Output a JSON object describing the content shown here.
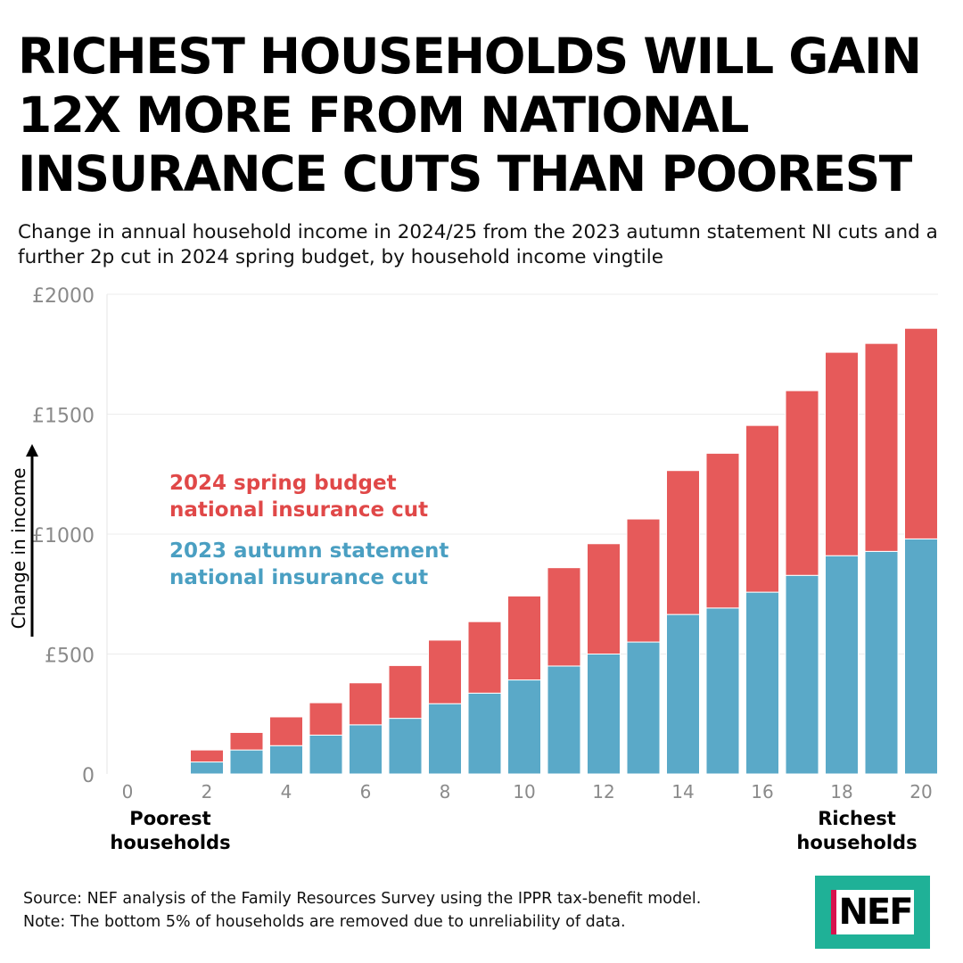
{
  "headline": "RICHEST HOUSEHOLDS WILL GAIN 12X MORE FROM NATIONAL INSURANCE CUTS THAN POOREST",
  "subtitle": "Change in annual household income in 2024/25 from the 2023 autumn statement NI cuts and a further 2p cut in 2024 spring budget, by household income vingtile",
  "footer": {
    "source": "Source: NEF analysis of the Family Resources Survey using the IPPR tax-benefit model.",
    "note": "Note: The bottom 5% of households are removed due to unreliability of data."
  },
  "logo": {
    "text": "NEF",
    "bg_color": "#1fb197",
    "accent_color": "#d8124e"
  },
  "chart_data": {
    "type": "bar",
    "stacked": true,
    "ylabel": "Change in income",
    "xlim": [
      0,
      20
    ],
    "ylim": [
      0,
      2000
    ],
    "y_ticks": [
      0,
      500,
      1000,
      1500,
      2000
    ],
    "y_tick_labels": [
      "0",
      "£500",
      "£1000",
      "£1500",
      "£2000"
    ],
    "x_ticks": [
      0,
      2,
      4,
      6,
      8,
      10,
      12,
      14,
      16,
      18,
      20
    ],
    "x_tick_labels": [
      "0",
      "2",
      "4",
      "6",
      "8",
      "10",
      "12",
      "14",
      "16",
      "18",
      "20"
    ],
    "x_end_labels": {
      "left": "Poorest households",
      "right": "Richest households"
    },
    "grid": true,
    "categories": [
      2,
      3,
      4,
      5,
      6,
      7,
      8,
      9,
      10,
      11,
      12,
      13,
      14,
      15,
      16,
      17,
      18,
      19,
      20
    ],
    "series": [
      {
        "name": "2023 autumn statement national insurance cut",
        "color": "#5aa9c8",
        "values": [
          50,
          100,
          118,
          162,
          205,
          232,
          293,
          337,
          392,
          450,
          500,
          550,
          665,
          692,
          758,
          828,
          910,
          928,
          980
        ]
      },
      {
        "name": "2024 spring budget national insurance cut",
        "color": "#e65a5a",
        "values": [
          50,
          73,
          120,
          135,
          175,
          220,
          265,
          298,
          350,
          410,
          460,
          513,
          600,
          645,
          695,
          770,
          848,
          867,
          878
        ]
      }
    ],
    "annotations": [
      {
        "series": 1,
        "lines": [
          "2024 spring budget",
          "national insurance cut"
        ]
      },
      {
        "series": 0,
        "lines": [
          "2023 autumn statement",
          "national insurance cut"
        ]
      }
    ]
  }
}
